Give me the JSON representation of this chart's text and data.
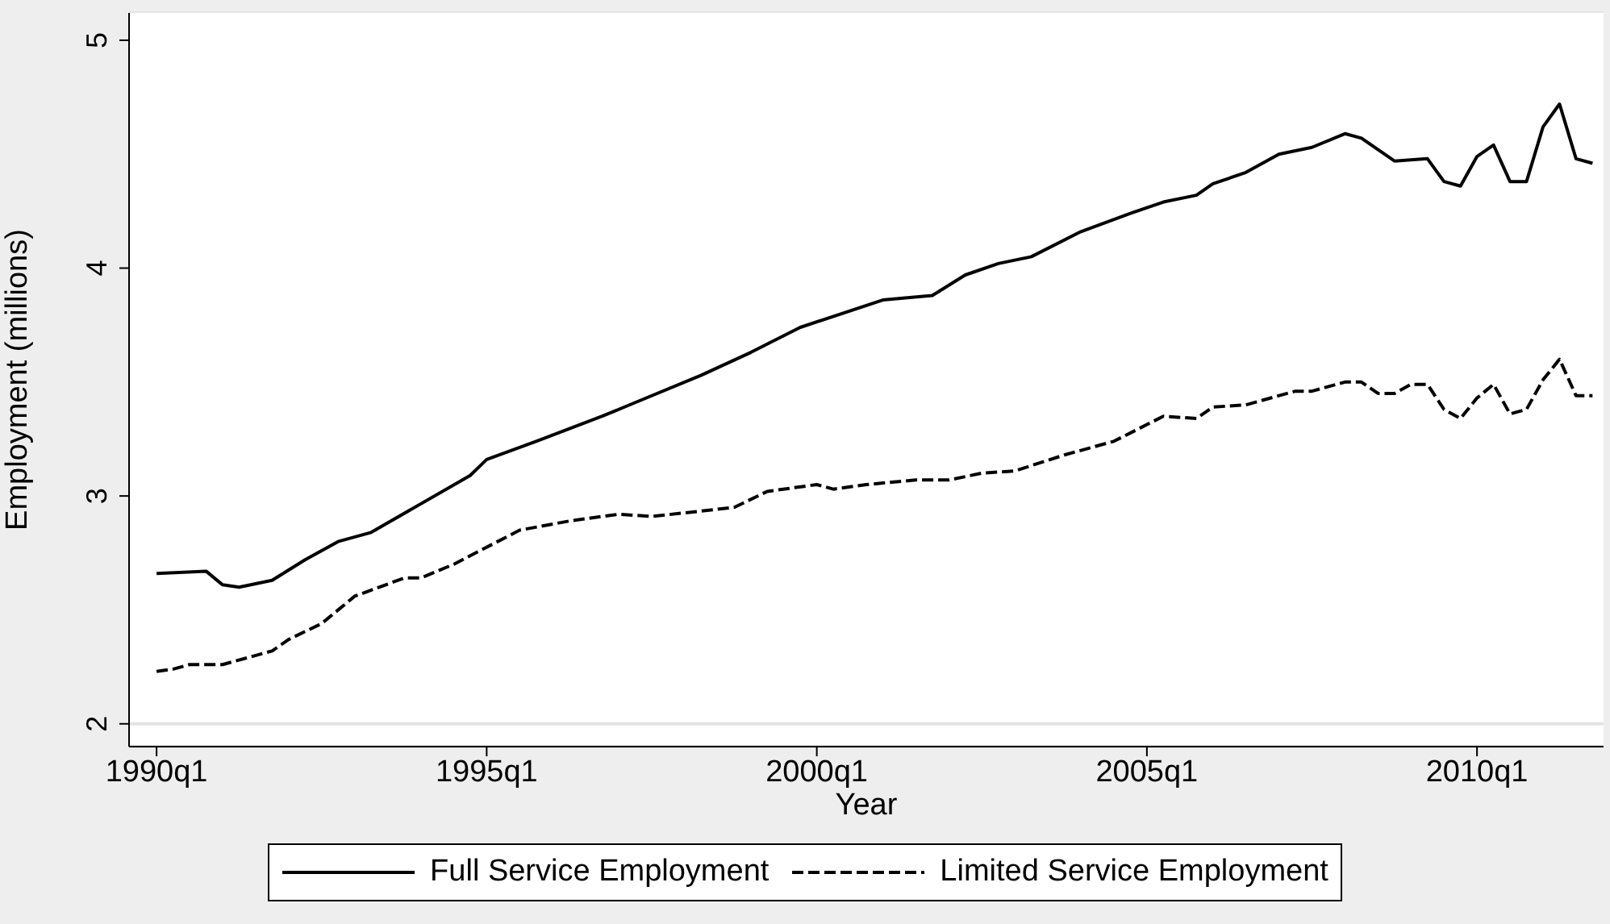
{
  "chart_data": {
    "type": "line",
    "xlabel": "Year",
    "ylabel": "Employment (millions)",
    "xlim": [
      "1989-08",
      "2011-12"
    ],
    "xticks": [
      {
        "value": "1990-01",
        "label": "1990q1"
      },
      {
        "value": "1995-01",
        "label": "1995q1"
      },
      {
        "value": "2000-01",
        "label": "2000q1"
      },
      {
        "value": "2005-01",
        "label": "2005q1"
      },
      {
        "value": "2010-01",
        "label": "2010q1"
      }
    ],
    "ylim": [
      1.9,
      5.12
    ],
    "yticks": [
      2,
      3,
      4,
      5
    ],
    "grid": "y",
    "legend": "bottom",
    "marker": "none",
    "series": [
      {
        "name": "Full Service Employment",
        "color": "#000000",
        "line_style": "solid",
        "x": [
          "1990-01",
          "1990-10",
          "1991-01",
          "1991-04",
          "1991-10",
          "1992-04",
          "1992-10",
          "1993-04",
          "1994-10",
          "1995-01",
          "1995-10",
          "1996-10",
          "1997-04",
          "1998-04",
          "1999-01",
          "1999-10",
          "2001-01",
          "2001-10",
          "2002-04",
          "2002-10",
          "2003-04",
          "2004-01",
          "2004-10",
          "2005-04",
          "2005-10",
          "2006-01",
          "2006-07",
          "2007-01",
          "2007-07",
          "2008-01",
          "2008-04",
          "2008-10",
          "2009-04",
          "2009-07",
          "2009-10",
          "2010-01",
          "2010-04",
          "2010-07",
          "2010-10",
          "2011-01",
          "2011-04",
          "2011-07",
          "2011-10"
        ],
        "values": [
          2.66,
          2.67,
          2.61,
          2.6,
          2.63,
          2.72,
          2.8,
          2.84,
          3.09,
          3.16,
          3.24,
          3.35,
          3.41,
          3.53,
          3.63,
          3.74,
          3.86,
          3.88,
          3.97,
          4.02,
          4.05,
          4.16,
          4.24,
          4.29,
          4.32,
          4.37,
          4.42,
          4.5,
          4.53,
          4.59,
          4.57,
          4.47,
          4.48,
          4.38,
          4.36,
          4.49,
          4.54,
          4.38,
          4.38,
          4.62,
          4.72,
          4.48,
          4.46
        ]
      },
      {
        "name": "Limited Service Employment",
        "color": "#000000",
        "line_style": "dashed",
        "x": [
          "1990-01",
          "1990-04",
          "1990-07",
          "1991-01",
          "1991-10",
          "1992-01",
          "1992-07",
          "1993-01",
          "1993-10",
          "1994-01",
          "1994-07",
          "1995-07",
          "1996-04",
          "1997-01",
          "1997-07",
          "1998-10",
          "1999-04",
          "2000-01",
          "2000-04",
          "2000-10",
          "2001-07",
          "2002-01",
          "2002-07",
          "2003-01",
          "2003-10",
          "2004-07",
          "2005-04",
          "2005-10",
          "2006-01",
          "2006-07",
          "2007-04",
          "2007-07",
          "2008-01",
          "2008-04",
          "2008-07",
          "2008-10",
          "2009-01",
          "2009-04",
          "2009-07",
          "2009-10",
          "2010-01",
          "2010-04",
          "2010-07",
          "2010-10",
          "2011-01",
          "2011-04",
          "2011-07",
          "2011-10"
        ],
        "values": [
          2.23,
          2.24,
          2.26,
          2.26,
          2.32,
          2.37,
          2.44,
          2.56,
          2.64,
          2.64,
          2.7,
          2.85,
          2.89,
          2.92,
          2.91,
          2.95,
          3.02,
          3.05,
          3.03,
          3.05,
          3.07,
          3.07,
          3.1,
          3.11,
          3.18,
          3.24,
          3.35,
          3.34,
          3.39,
          3.4,
          3.46,
          3.46,
          3.5,
          3.5,
          3.45,
          3.45,
          3.49,
          3.49,
          3.38,
          3.34,
          3.43,
          3.49,
          3.36,
          3.38,
          3.51,
          3.6,
          3.44,
          3.44
        ]
      }
    ]
  }
}
